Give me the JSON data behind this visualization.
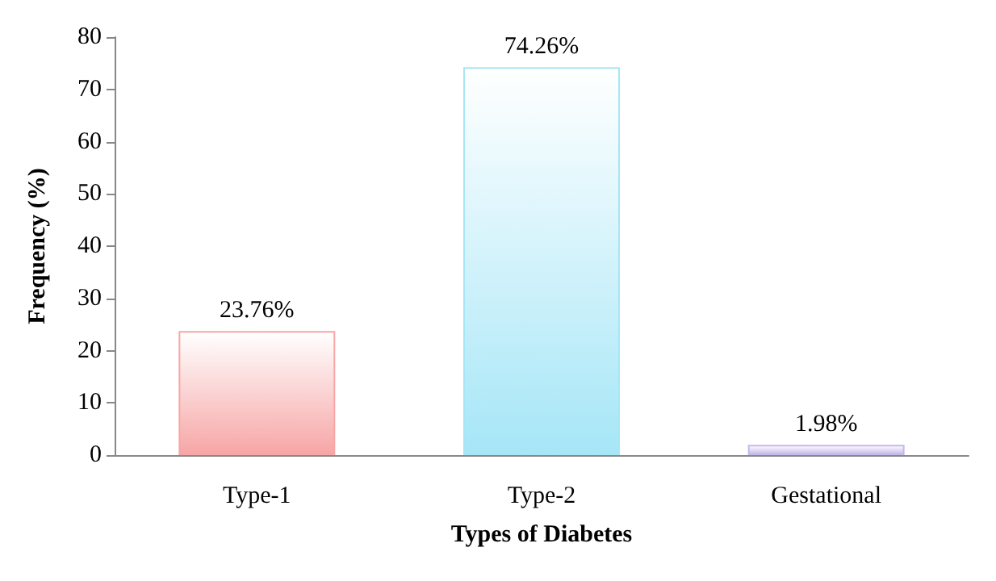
{
  "chart_data": {
    "type": "bar",
    "xlabel": "Types of Diabetes",
    "ylabel": "Frequency (%)",
    "categories": [
      "Type-1",
      "Type-2",
      "Gestational"
    ],
    "values": [
      23.76,
      74.26,
      1.98
    ],
    "colors": [
      "#f7a6a6",
      "#a6e6f7",
      "#c5b8ea"
    ],
    "value_labels": [
      "23.76%",
      "74.26%",
      "1.98%"
    ],
    "ylim": [
      0,
      80
    ],
    "yticks": [
      0,
      10,
      20,
      30,
      40,
      50,
      60,
      70,
      80
    ],
    "grid": false
  }
}
